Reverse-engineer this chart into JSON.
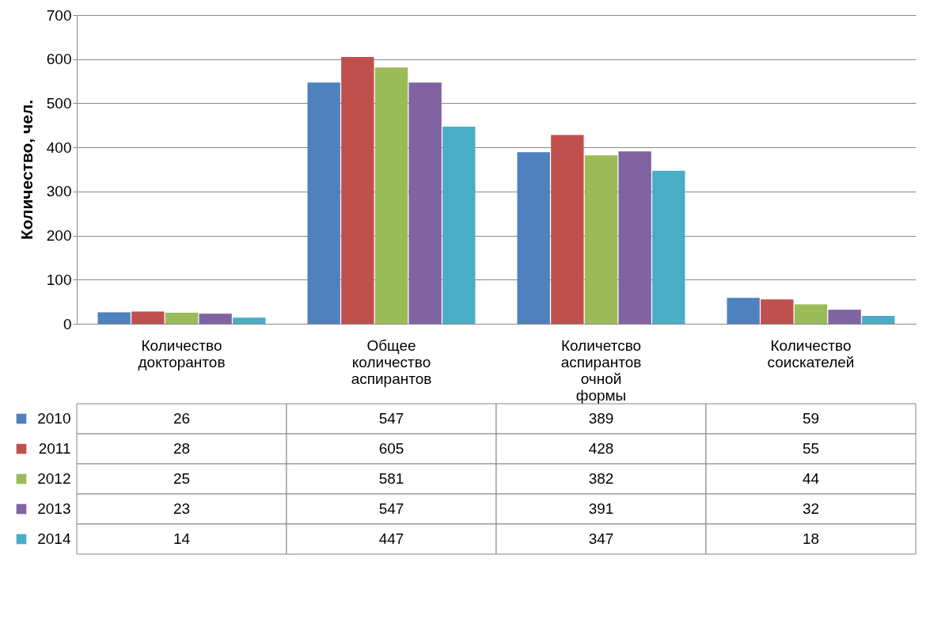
{
  "chart_data": {
    "type": "bar",
    "ylabel": "Количество, чел.",
    "categories": [
      "Количество докторантов",
      "Общее количество аспирантов",
      "Количетсво аспирантов очной формы",
      "Количество соискателей"
    ],
    "series": [
      {
        "name": "2010",
        "color": "#4f81bd",
        "values": [
          26,
          547,
          389,
          59
        ]
      },
      {
        "name": "2011",
        "color": "#c0504d",
        "values": [
          28,
          605,
          428,
          55
        ]
      },
      {
        "name": "2012",
        "color": "#9bbb59",
        "values": [
          25,
          581,
          382,
          44
        ]
      },
      {
        "name": "2013",
        "color": "#8064a2",
        "values": [
          23,
          547,
          391,
          32
        ]
      },
      {
        "name": "2014",
        "color": "#4bacc6",
        "values": [
          14,
          447,
          347,
          18
        ]
      }
    ],
    "ylim": [
      0,
      700
    ],
    "yticks": [
      0,
      100,
      200,
      300,
      400,
      500,
      600,
      700
    ],
    "grid": "y",
    "data_labels": true,
    "legend": "bottom left"
  }
}
